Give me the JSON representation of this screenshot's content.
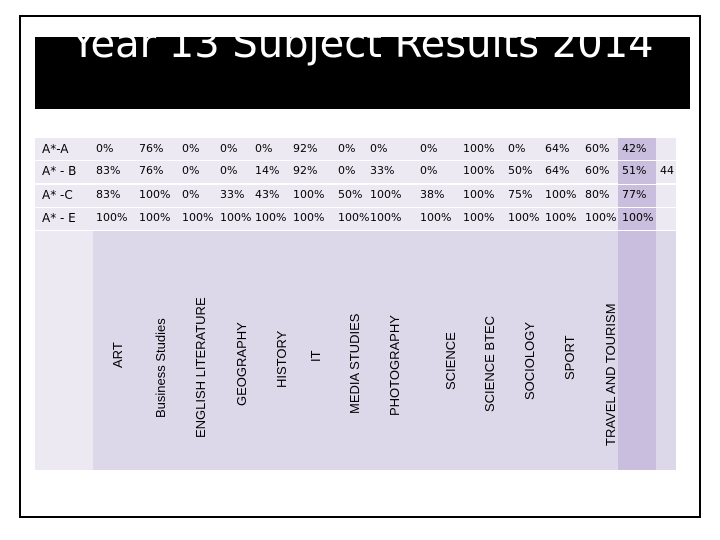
{
  "title": "Year 13 Subject Results 2014",
  "colors": {
    "row_band": "#ece9f2",
    "header_band": "#dcd8ea",
    "highlight_column": "#c9bedd"
  },
  "rows": [
    {
      "label": "A*-A",
      "cells": [
        "0%",
        "76%",
        "0%",
        "0%",
        "0%",
        "92%",
        "0%",
        "0%",
        "0%",
        "100%",
        "0%",
        "64%",
        "60%",
        "42%"
      ]
    },
    {
      "label": "A* - B",
      "cells": [
        "83%",
        "76%",
        "0%",
        "0%",
        "14%",
        "92%",
        "0%",
        "33%",
        "0%",
        "100%",
        "50%",
        "64%",
        "60%",
        "51%"
      ],
      "extra": "44"
    },
    {
      "label": "A* -C",
      "cells": [
        "83%",
        "100%",
        "0%",
        "33%",
        "43%",
        "100%",
        "50%",
        "100%",
        "38%",
        "100%",
        "75%",
        "100%",
        "80%",
        "77%"
      ]
    },
    {
      "label": "A* - E",
      "cells": [
        "100%",
        "100%",
        "100%",
        "100%",
        "100%",
        "100%",
        "100%",
        "100%",
        "100%",
        "100%",
        "100%",
        "100%",
        "100%",
        "100%"
      ]
    }
  ],
  "subjects": [
    "ART",
    "Business Studies",
    "ENGLISH LITERATURE",
    "GEOGRAPHY",
    "HISTORY",
    "IT",
    "MEDIA STUDIES",
    "PHOTOGRAPHY",
    "SCIENCE",
    "SCIENCE BTEC",
    "SOCIOLOGY",
    "SPORT",
    "TRAVEL AND TOURISM"
  ]
}
